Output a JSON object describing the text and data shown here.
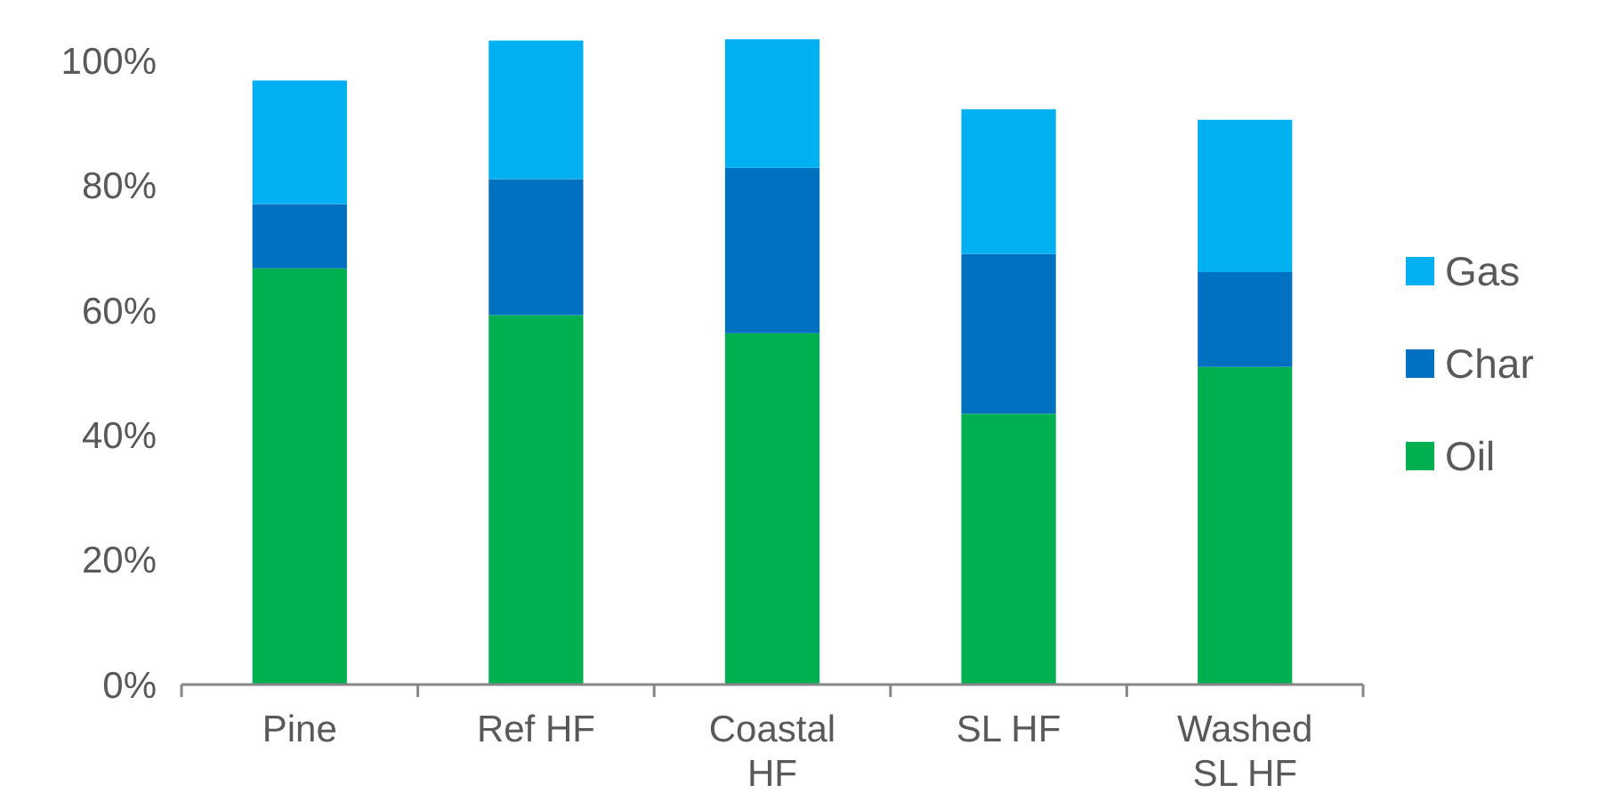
{
  "chart_data": {
    "type": "bar",
    "stacked": true,
    "categories": [
      "Pine",
      "Ref HF",
      "Coastal HF",
      "SL HF",
      "Washed SL HF"
    ],
    "series": [
      {
        "name": "Oil",
        "color": "#00b050",
        "values": [
          66.7,
          59.2,
          56.3,
          43.4,
          50.9
        ]
      },
      {
        "name": "Char",
        "color": "#0070c0",
        "values": [
          10.3,
          21.8,
          26.5,
          25.6,
          15.2
        ]
      },
      {
        "name": "Gas",
        "color": "#00b0f0",
        "values": [
          19.8,
          22.2,
          20.6,
          23.2,
          24.4
        ]
      }
    ],
    "ylim": [
      0,
      104
    ],
    "yticks": [
      {
        "value": 0,
        "label": "0%"
      },
      {
        "value": 20,
        "label": "20%"
      },
      {
        "value": 40,
        "label": "40%"
      },
      {
        "value": 60,
        "label": "60%"
      },
      {
        "value": 80,
        "label": "80%"
      },
      {
        "value": 100,
        "label": "100%"
      }
    ],
    "grid": false,
    "legend": "right"
  }
}
